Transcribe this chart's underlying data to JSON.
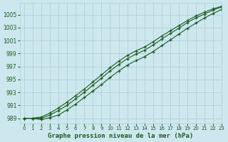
{
  "xlabel": "Graphe pression niveau de la mer (hPa)",
  "bg_color": "#cce8ee",
  "grid_color": "#aaccd4",
  "line_color": "#1a5c1a",
  "xlim": [
    -0.5,
    23
  ],
  "ylim": [
    988.2,
    1006.8
  ],
  "yticks": [
    989,
    991,
    993,
    995,
    997,
    999,
    1001,
    1003,
    1005
  ],
  "xticks": [
    0,
    1,
    2,
    3,
    4,
    5,
    6,
    7,
    8,
    9,
    10,
    11,
    12,
    13,
    14,
    15,
    16,
    17,
    18,
    19,
    20,
    21,
    22,
    23
  ],
  "x": [
    0,
    1,
    2,
    3,
    4,
    5,
    6,
    7,
    8,
    9,
    10,
    11,
    12,
    13,
    14,
    15,
    16,
    17,
    18,
    19,
    20,
    21,
    22,
    23
  ],
  "line1": [
    989.0,
    989.0,
    988.8,
    989.1,
    989.5,
    990.3,
    991.2,
    992.2,
    993.2,
    994.2,
    995.3,
    996.3,
    997.2,
    997.9,
    998.5,
    999.3,
    1000.2,
    1001.1,
    1002.0,
    1002.9,
    1003.7,
    1004.5,
    1005.2,
    1005.8
  ],
  "line2": [
    989.0,
    989.0,
    989.0,
    989.5,
    990.2,
    991.0,
    992.0,
    993.0,
    994.1,
    995.2,
    996.3,
    997.3,
    998.2,
    998.9,
    999.5,
    1000.3,
    1001.2,
    1002.1,
    1002.9,
    1003.8,
    1004.5,
    1005.1,
    1005.7,
    1006.2
  ],
  "line3": [
    989.0,
    989.0,
    989.2,
    989.8,
    990.6,
    991.5,
    992.5,
    993.5,
    994.6,
    995.7,
    996.8,
    997.8,
    998.7,
    999.4,
    1000.0,
    1000.8,
    1001.7,
    1002.5,
    1003.3,
    1004.1,
    1004.8,
    1005.4,
    1005.9,
    1006.3
  ]
}
